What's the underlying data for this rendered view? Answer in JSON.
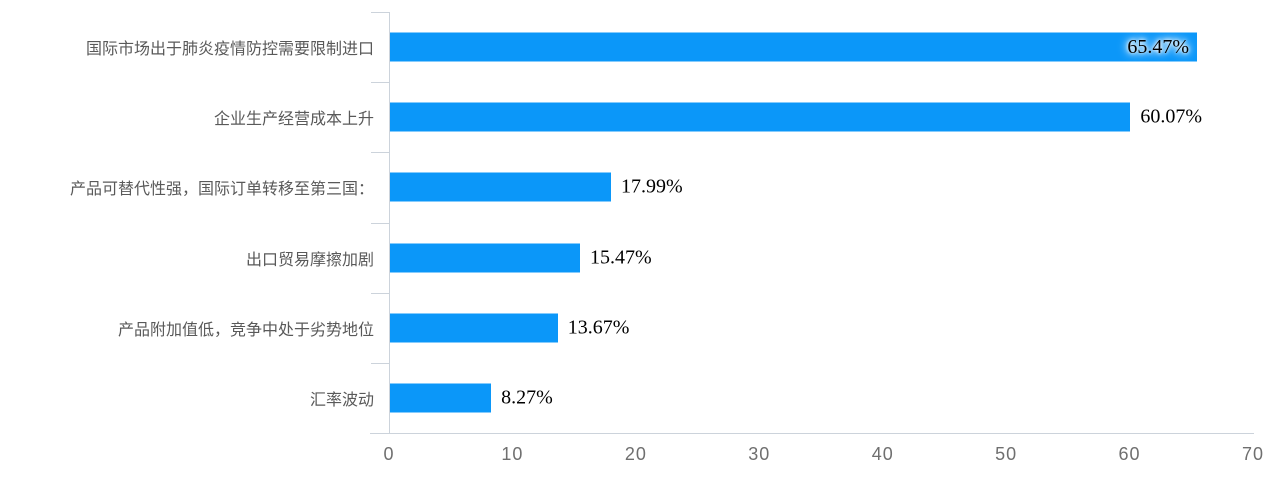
{
  "chart_data": {
    "type": "bar",
    "orientation": "horizontal",
    "title": "",
    "xlabel": "",
    "ylabel": "",
    "categories": [
      "国际市场出于肺炎疫情防控需要限制进口",
      "企业生产经营成本上升",
      "产品可替代性强，国际订单转移至第三国：",
      "出口贸易摩擦加剧",
      "产品附加值低，竞争中处于劣势地位",
      "汇率波动"
    ],
    "values": [
      65.47,
      60.07,
      17.99,
      15.47,
      13.67,
      8.27
    ],
    "value_labels": [
      "65.47%",
      "60.07%",
      "17.99%",
      "15.47%",
      "13.67%",
      "8.27%"
    ],
    "xlim": [
      0,
      70
    ],
    "x_ticks": [
      "0",
      "10",
      "20",
      "30",
      "40",
      "50",
      "60",
      "70"
    ],
    "grid": false,
    "legend": null,
    "colors": {
      "bar": "#0b97f9",
      "axis": "#ccd3db",
      "tick_label": "#6f6f6f",
      "category_label": "#595959",
      "value_label": "#000000"
    }
  }
}
